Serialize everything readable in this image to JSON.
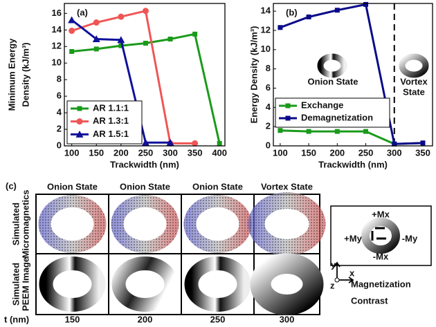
{
  "chart_data": [
    {
      "type": "line",
      "label": "(a)",
      "x_label": "Trackwidth (nm)",
      "y_label": [
        "Minimum Energy",
        "Density (kJ/m³)"
      ],
      "xlim": [
        85,
        411
      ],
      "xticks": [
        100,
        150,
        200,
        250,
        300,
        350,
        400
      ],
      "ylim": [
        0,
        17.2
      ],
      "yticks": [
        0,
        2,
        4,
        6,
        8,
        10,
        12,
        14,
        16
      ],
      "legend": "lower left",
      "series": [
        {
          "name": "AR 1.1:1",
          "color": "#1a9a1a",
          "marker": "square",
          "x": [
            100,
            150,
            200,
            250,
            300,
            350,
            400
          ],
          "values": [
            11.4,
            11.7,
            12.1,
            12.4,
            12.9,
            13.5,
            0.3
          ]
        },
        {
          "name": "AR 1.3:1",
          "color": "#f05555",
          "marker": "circle",
          "x": [
            100,
            150,
            200,
            250,
            300,
            350
          ],
          "values": [
            13.9,
            14.9,
            15.6,
            16.3,
            0.3,
            0.3
          ]
        },
        {
          "name": "AR 1.5:1",
          "color": "#10109a",
          "marker": "triangle",
          "x": [
            100,
            150,
            200,
            250,
            300
          ],
          "values": [
            15.2,
            12.9,
            12.8,
            0.4,
            0.4
          ]
        }
      ]
    },
    {
      "type": "line",
      "label": "(b)",
      "x_label": "Trackwidth (nm)",
      "y_label": [
        "Energy Density (kJ/m³)"
      ],
      "xlim": [
        88,
        367
      ],
      "xticks": [
        100,
        150,
        200,
        250,
        300,
        350
      ],
      "ylim": [
        0,
        14.8
      ],
      "yticks": [
        0,
        2,
        4,
        6,
        8,
        10,
        12,
        14
      ],
      "legend": "center left",
      "vline": 300,
      "annotations": {
        "onion": "Onion State",
        "vortex": [
          "Vortex",
          "State"
        ]
      },
      "series": [
        {
          "name": "Exchange",
          "color": "#1a9a1a",
          "marker": "square",
          "x": [
            100,
            150,
            200,
            250,
            300,
            350
          ],
          "values": [
            1.6,
            1.5,
            1.5,
            1.5,
            0.2,
            0.3
          ]
        },
        {
          "name": "Demagnetization",
          "color": "#0a0a8a",
          "marker": "square",
          "x": [
            100,
            150,
            200,
            250,
            300,
            350
          ],
          "values": [
            12.3,
            13.4,
            14.1,
            14.7,
            0.2,
            0.3
          ]
        }
      ]
    }
  ],
  "panel_c": {
    "label": "(c)",
    "columns": [
      "Onion State",
      "Onion State",
      "Onion State",
      "Vortex State"
    ],
    "rows": [
      [
        "Simulated",
        "Micromagnetics"
      ],
      [
        "Simulated",
        "PEEM Image"
      ]
    ],
    "t_label": "t (nm)",
    "t_values": [
      150,
      200,
      250,
      300
    ],
    "key": {
      "plus_mx": "+Mx",
      "minus_mx": "-Mx",
      "plus_my": "+My",
      "minus_my": "-My",
      "axes": [
        "y",
        "x",
        "z"
      ],
      "caption": [
        "Magnetization",
        "Contrast"
      ]
    }
  }
}
